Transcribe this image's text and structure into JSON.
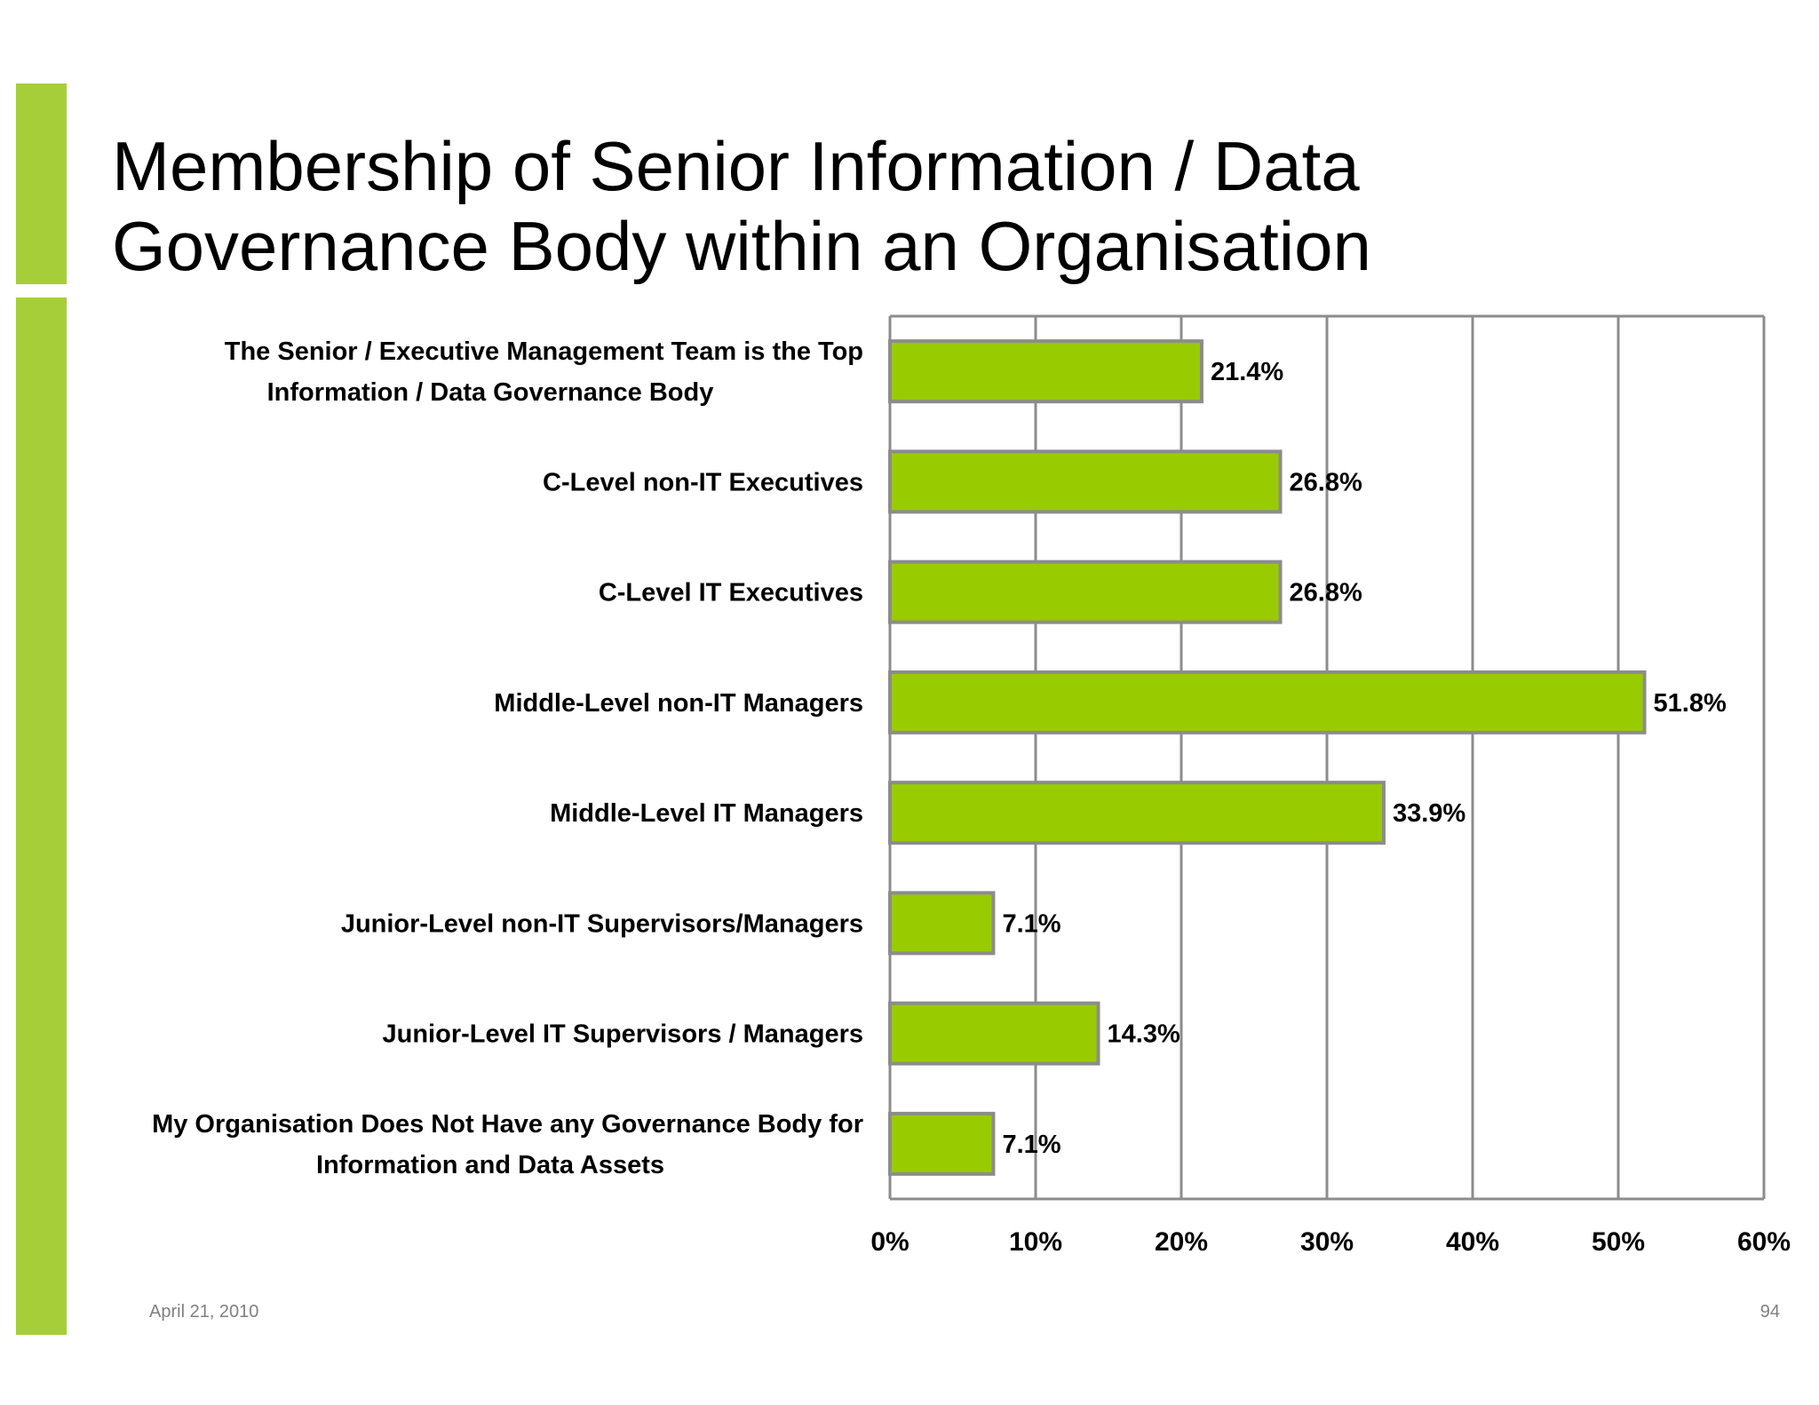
{
  "slide": {
    "title_lines": [
      "Membership of Senior Information / Data",
      "Governance Body within an Organisation"
    ],
    "footer_date": "April 21, 2010",
    "page_number": "94",
    "accent_color": "#a6ce39"
  },
  "chart_data": {
    "type": "bar",
    "orientation": "horizontal",
    "categories": [
      [
        "The Senior / Executive Management Team is the Top",
        "Information / Data Governance Body"
      ],
      [
        "C-Level non-IT Executives"
      ],
      [
        "C-Level IT Executives"
      ],
      [
        "Middle-Level non-IT Managers"
      ],
      [
        "Middle-Level IT Managers"
      ],
      [
        "Junior-Level non-IT Supervisors/Managers"
      ],
      [
        "Junior-Level IT Supervisors / Managers"
      ],
      [
        "My Organisation Does Not Have any Governance Body for",
        "Information and Data Assets"
      ]
    ],
    "values": [
      21.4,
      26.8,
      26.8,
      51.8,
      33.9,
      7.1,
      14.3,
      7.1
    ],
    "value_labels": [
      "21.4%",
      "26.8%",
      "26.8%",
      "51.8%",
      "33.9%",
      "7.1%",
      "14.3%",
      "7.1%"
    ],
    "xlim": [
      0,
      60
    ],
    "x_ticks": [
      0,
      10,
      20,
      30,
      40,
      50,
      60
    ],
    "x_tick_labels": [
      "0%",
      "10%",
      "20%",
      "30%",
      "40%",
      "50%",
      "60%"
    ],
    "grid": true,
    "bar_color": "#99cc00",
    "bar_border_color": "#8c8c8c",
    "grid_color": "#8c8c8c"
  }
}
